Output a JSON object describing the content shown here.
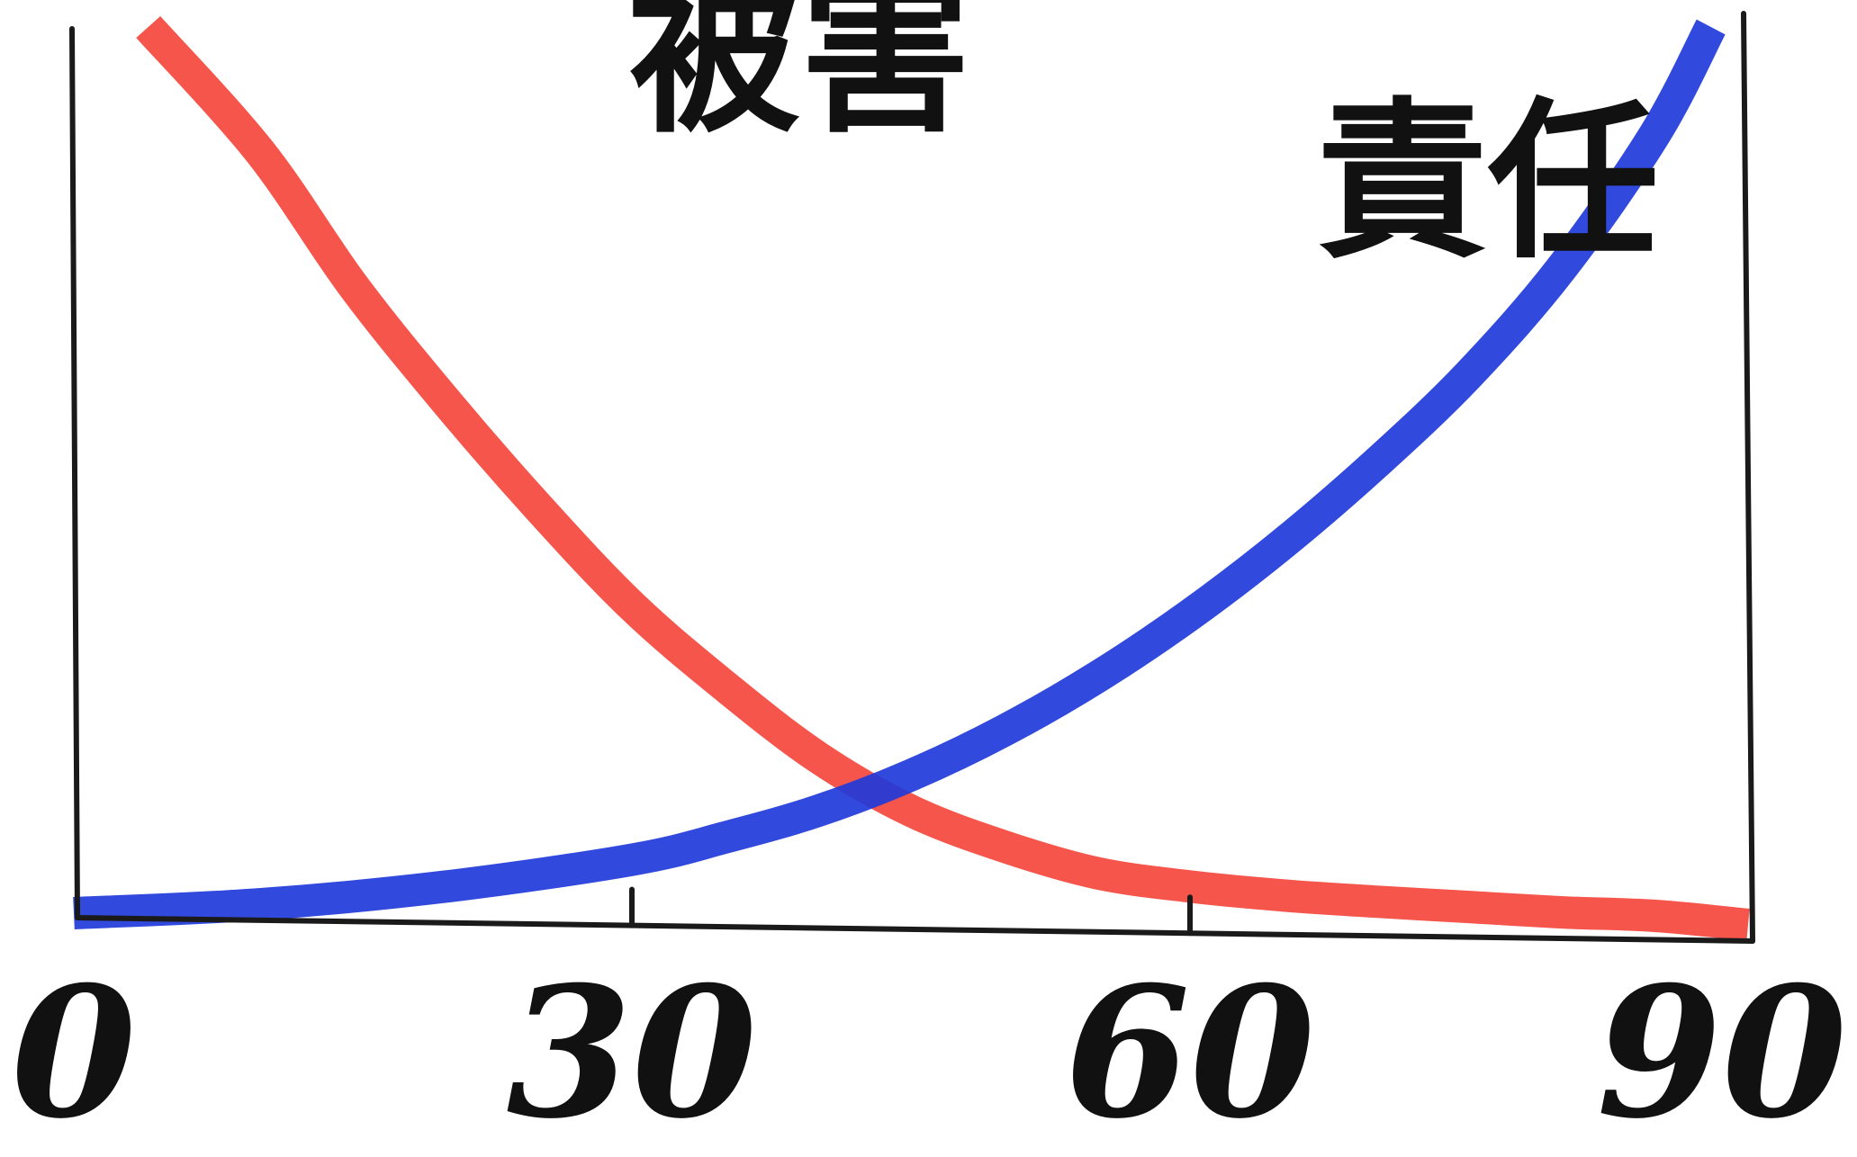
{
  "chart_data": {
    "type": "line",
    "x_ticks": [
      0,
      30,
      60,
      90
    ],
    "xlim": [
      0,
      90
    ],
    "ylim": [
      0,
      100
    ],
    "grid": false,
    "series": [
      {
        "name": "被害",
        "color": "#f5473c",
        "x": [
          4,
          10,
          15,
          20,
          25,
          30,
          35,
          40,
          45,
          50,
          55,
          60,
          65,
          70,
          75,
          80,
          85,
          90
        ],
        "values": [
          100,
          86,
          71,
          58,
          46,
          35,
          26,
          18,
          12,
          8,
          5,
          3.5,
          2.5,
          1.8,
          1.2,
          0.6,
          0.2,
          -0.8
        ]
      },
      {
        "name": "責任",
        "color": "#1f39d9",
        "x": [
          0,
          10,
          20,
          30,
          35,
          40,
          45,
          50,
          55,
          60,
          65,
          70,
          75,
          80,
          85,
          88
        ],
        "values": [
          0.5,
          1.5,
          3.5,
          6.5,
          9,
          12,
          16,
          21,
          27,
          34,
          42,
          51,
          61,
          73,
          88,
          100
        ]
      }
    ]
  }
}
